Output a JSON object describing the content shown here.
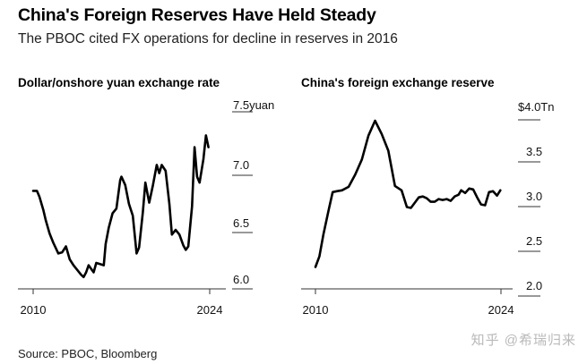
{
  "header": {
    "title": "China's Foreign Reserves Have Held Steady",
    "subtitle": "The PBOC cited FX operations for decline in reserves in 2016"
  },
  "footer": {
    "source": "Source: PBOC, Bloomberg",
    "watermark": "知乎 @希瑞归来"
  },
  "chart_data": [
    {
      "type": "line",
      "title": "Dollar/onshore yuan exchange rate",
      "xlabel": "",
      "ylabel": "",
      "x_ticks": [
        "2010",
        "2024"
      ],
      "y_ticks": [
        "6.0",
        "6.5",
        "7.0",
        "7.5yuan"
      ],
      "xlim": [
        2010.0,
        2024.0
      ],
      "ylim": [
        6.0,
        7.5
      ],
      "color": "#000000",
      "grid": false,
      "series": [
        {
          "x": [
            2010.0,
            2010.3,
            2010.5,
            2010.8,
            2011.0,
            2011.3,
            2011.6,
            2012.0,
            2012.3,
            2012.6,
            2012.9,
            2013.2,
            2013.5,
            2013.8,
            2014.0,
            2014.2,
            2014.4,
            2014.6,
            2014.8,
            2015.0,
            2015.3,
            2015.6,
            2015.75,
            2016.0,
            2016.3,
            2016.6,
            2016.9,
            2017.0,
            2017.3,
            2017.6,
            2017.9,
            2018.2,
            2018.4,
            2018.7,
            2018.9,
            2019.2,
            2019.5,
            2019.8,
            2020.0,
            2020.2,
            2020.5,
            2020.8,
            2021.0,
            2021.3,
            2021.6,
            2021.9,
            2022.1,
            2022.3,
            2022.6,
            2022.8,
            2023.0,
            2023.2,
            2023.5,
            2023.7,
            2023.9
          ],
          "y": [
            6.83,
            6.83,
            6.78,
            6.67,
            6.58,
            6.47,
            6.39,
            6.3,
            6.31,
            6.36,
            6.25,
            6.2,
            6.16,
            6.12,
            6.1,
            6.14,
            6.2,
            6.17,
            6.14,
            6.22,
            6.21,
            6.2,
            6.38,
            6.52,
            6.64,
            6.68,
            6.92,
            6.95,
            6.88,
            6.72,
            6.62,
            6.3,
            6.35,
            6.65,
            6.9,
            6.73,
            6.88,
            7.05,
            6.98,
            7.05,
            7.0,
            6.72,
            6.46,
            6.5,
            6.46,
            6.37,
            6.33,
            6.36,
            6.7,
            7.2,
            6.95,
            6.9,
            7.1,
            7.3,
            7.2
          ]
        }
      ]
    },
    {
      "type": "line",
      "title": "China's foreign exchange reserve",
      "xlabel": "",
      "ylabel": "",
      "x_ticks": [
        "2010",
        "2024"
      ],
      "y_ticks": [
        "2.0",
        "2.5",
        "3.0",
        "3.5",
        "$4.0Tn"
      ],
      "xlim": [
        2010.0,
        2024.0
      ],
      "ylim": [
        2.0,
        4.0
      ],
      "color": "#000000",
      "grid": false,
      "series": [
        {
          "x": [
            2010.0,
            2010.3,
            2010.6,
            2011.0,
            2011.3,
            2011.6,
            2012.0,
            2012.5,
            2013.0,
            2013.5,
            2014.0,
            2014.5,
            2015.0,
            2015.5,
            2016.0,
            2016.5,
            2016.9,
            2017.2,
            2017.5,
            2017.8,
            2018.1,
            2018.4,
            2018.7,
            2019.0,
            2019.3,
            2019.6,
            2019.9,
            2020.2,
            2020.5,
            2020.8,
            2021.0,
            2021.3,
            2021.6,
            2021.9,
            2022.2,
            2022.5,
            2022.8,
            2023.1,
            2023.4,
            2023.7,
            2023.95
          ],
          "y": [
            2.33,
            2.45,
            2.7,
            2.98,
            3.18,
            3.19,
            3.2,
            3.24,
            3.38,
            3.55,
            3.82,
            3.99,
            3.84,
            3.65,
            3.25,
            3.2,
            3.01,
            3.0,
            3.06,
            3.12,
            3.13,
            3.11,
            3.07,
            3.07,
            3.1,
            3.09,
            3.1,
            3.08,
            3.13,
            3.15,
            3.2,
            3.17,
            3.22,
            3.21,
            3.12,
            3.04,
            3.03,
            3.18,
            3.19,
            3.14,
            3.2
          ]
        }
      ]
    }
  ]
}
